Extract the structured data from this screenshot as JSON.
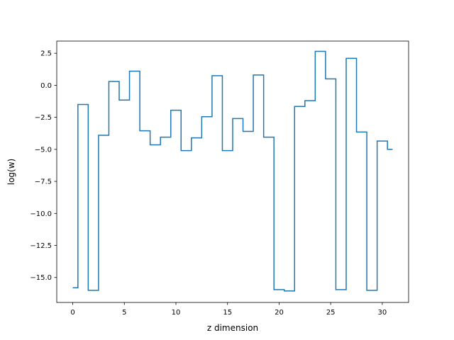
{
  "chart_data": {
    "type": "line",
    "step": "mid",
    "title": "",
    "xlabel": "z dimension",
    "ylabel": "log(w)",
    "xlim": [
      -1.55,
      32.55
    ],
    "ylim": [
      -16.95,
      3.45
    ],
    "xticks": [
      0,
      5,
      10,
      15,
      20,
      25,
      30
    ],
    "xtick_labels": [
      "0",
      "5",
      "10",
      "15",
      "20",
      "25",
      "30"
    ],
    "yticks": [
      2.5,
      0.0,
      -2.5,
      -5.0,
      -7.5,
      -10.0,
      -12.5,
      -15.0
    ],
    "ytick_labels": [
      "2.5",
      "0.0",
      "−2.5",
      "−5.0",
      "−7.5",
      "−10.0",
      "−12.5",
      "−15.0"
    ],
    "grid": false,
    "series": [
      {
        "color": "#1f77b4",
        "x": [
          0,
          1,
          2,
          3,
          4,
          5,
          6,
          7,
          8,
          9,
          10,
          11,
          12,
          13,
          14,
          15,
          16,
          17,
          18,
          19,
          20,
          21,
          22,
          23,
          24,
          25,
          26,
          27,
          28,
          29,
          30,
          31
        ],
        "y": [
          -15.8,
          -1.5,
          -16.0,
          -3.9,
          0.3,
          -1.15,
          1.1,
          -3.55,
          -4.65,
          -4.05,
          -1.95,
          -5.1,
          -4.1,
          -2.45,
          0.75,
          -5.1,
          -2.6,
          -3.6,
          0.8,
          -4.05,
          -15.95,
          -16.05,
          -1.65,
          -1.2,
          2.65,
          0.5,
          -15.95,
          2.1,
          -3.65,
          -16.0,
          -4.35,
          -5.0
        ]
      }
    ]
  }
}
